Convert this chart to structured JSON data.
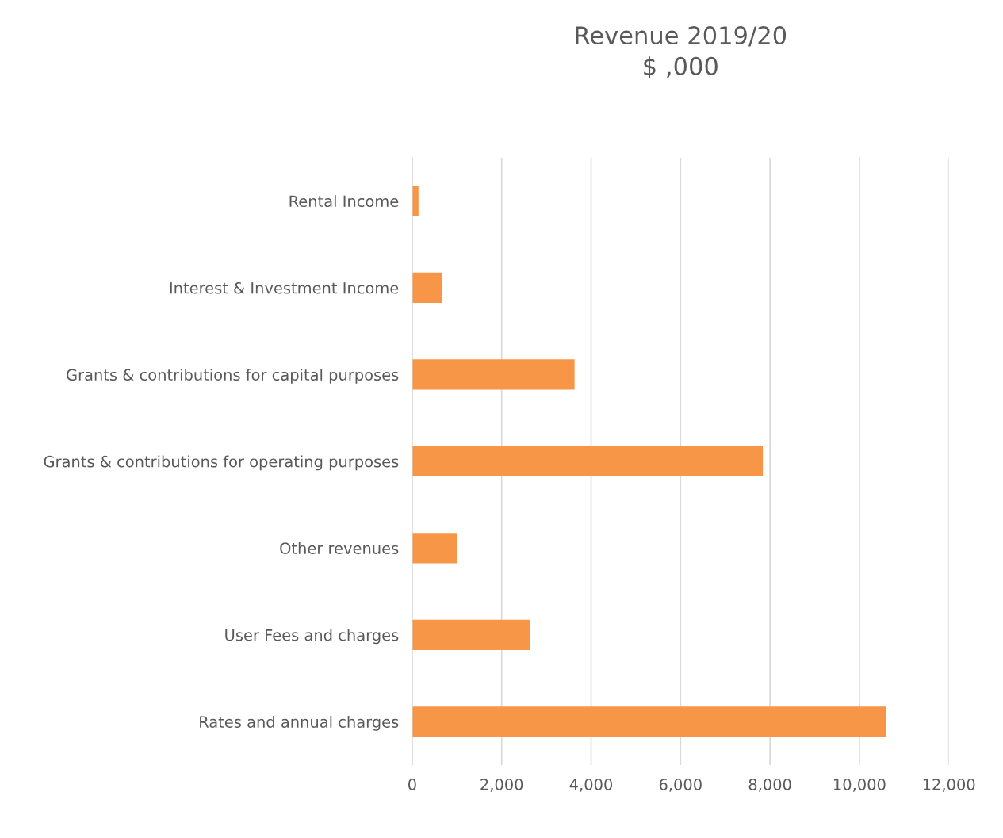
{
  "chart_data": {
    "type": "bar",
    "orientation": "horizontal",
    "title": "Revenue 2019/20\n$ ,000",
    "categories": [
      "Rental Income",
      "Interest & Investment Income",
      "Grants & contributions for capital purposes",
      "Grants & contributions for operating purposes",
      "Other revenues",
      "User Fees and charges",
      "Rates and annual charges"
    ],
    "values": [
      140,
      660,
      3630,
      7840,
      1010,
      2640,
      10590
    ],
    "color": "#f79646",
    "xlim": [
      0,
      12000
    ],
    "xticks": [
      {
        "value": 0,
        "label": "0"
      },
      {
        "value": 2000,
        "label": "2,000"
      },
      {
        "value": 4000,
        "label": "4,000"
      },
      {
        "value": 6000,
        "label": "6,000"
      },
      {
        "value": 8000,
        "label": "8,000"
      },
      {
        "value": 10000,
        "label": "10,000"
      },
      {
        "value": 12000,
        "label": "12,000"
      }
    ],
    "grid": "x",
    "legend": false
  }
}
